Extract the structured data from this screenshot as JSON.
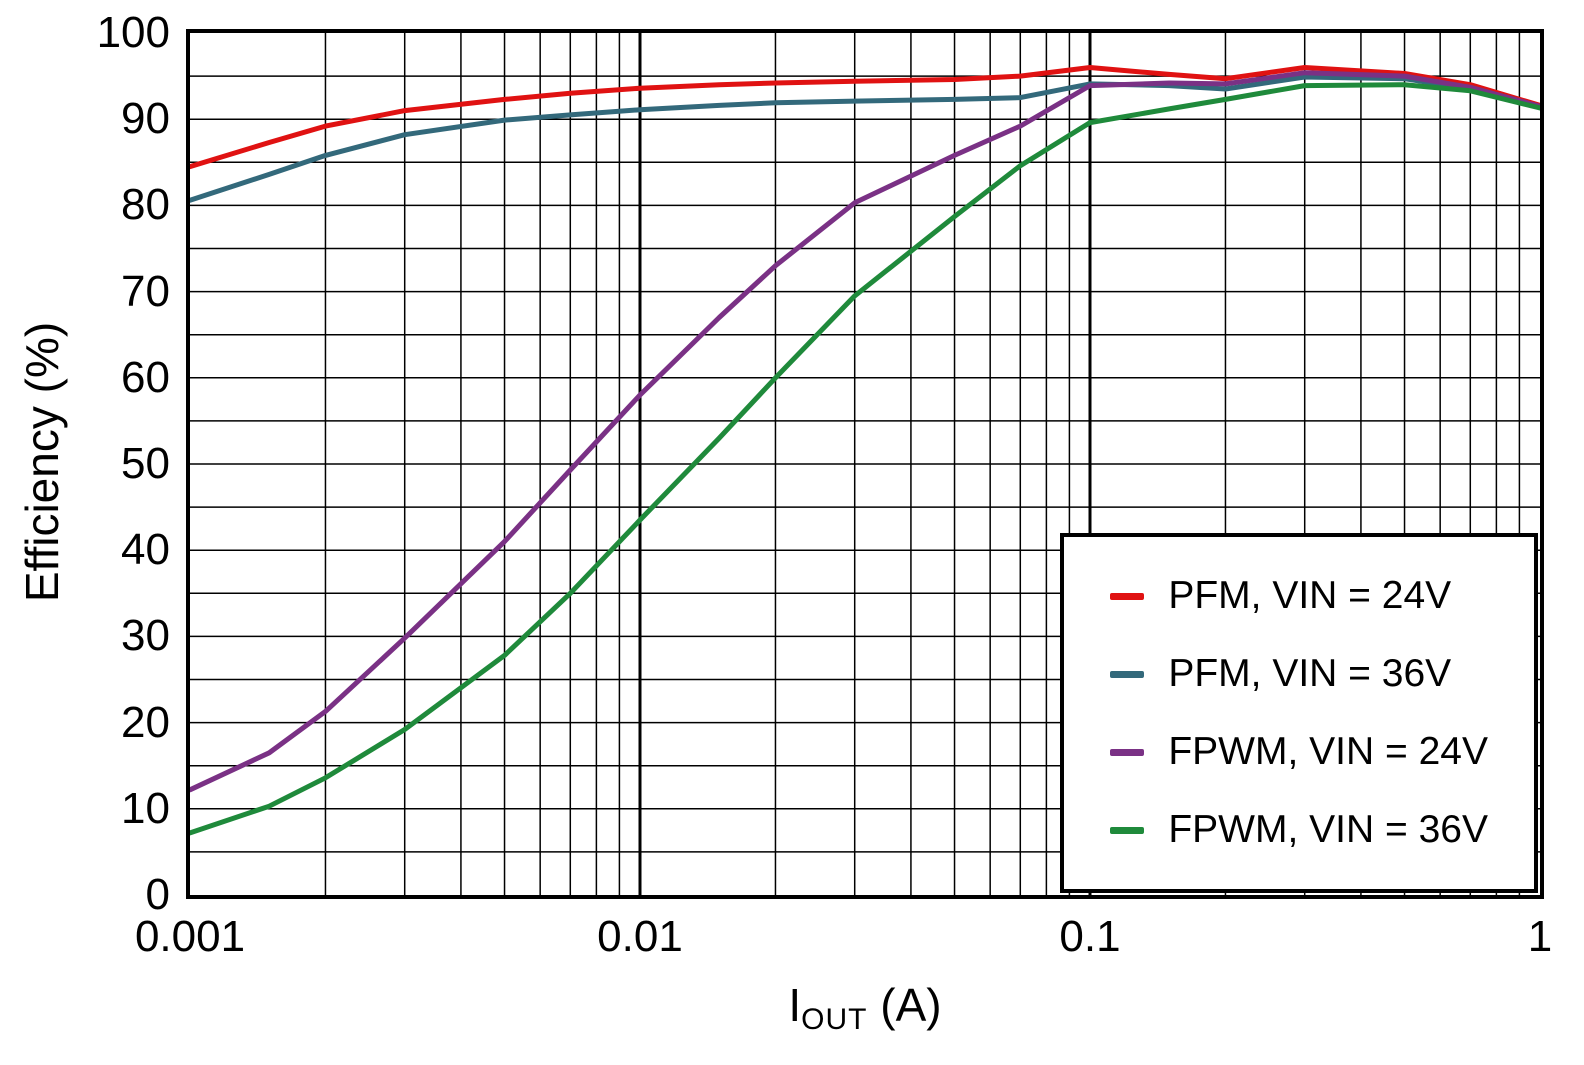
{
  "chart_data": {
    "type": "line",
    "ylabel": "Efficiency (%)",
    "xlabel_parts": {
      "pre": "I",
      "sub": "OUT",
      "post": " (A)"
    },
    "x_scale": "log",
    "xlim": [
      0.001,
      1
    ],
    "ylim": [
      0,
      100
    ],
    "grid": true,
    "y_tick_step": 10,
    "y_grid_step": 5,
    "legend_position": "bottom-right",
    "x_ticks": [
      {
        "value": 0.001,
        "label": "0.001"
      },
      {
        "value": 0.01,
        "label": "0.01"
      },
      {
        "value": 0.1,
        "label": "0.1"
      },
      {
        "value": 1,
        "label": "1"
      }
    ],
    "x": [
      0.001,
      0.0015,
      0.002,
      0.003,
      0.005,
      0.007,
      0.01,
      0.015,
      0.02,
      0.03,
      0.05,
      0.07,
      0.1,
      0.15,
      0.2,
      0.3,
      0.5,
      0.7,
      1
    ],
    "series": [
      {
        "name": "PFM, VIN = 24V",
        "color": "#e01212",
        "values": [
          84.5,
          87.3,
          89.2,
          91.0,
          92.3,
          93.0,
          93.6,
          94.0,
          94.2,
          94.4,
          94.6,
          95.0,
          96.0,
          95.2,
          94.7,
          96.0,
          95.3,
          94.0,
          91.6
        ]
      },
      {
        "name": "PFM, VIN = 36V",
        "color": "#33697b",
        "values": [
          80.6,
          83.6,
          85.8,
          88.2,
          89.9,
          90.5,
          91.1,
          91.6,
          91.9,
          92.1,
          92.3,
          92.5,
          94.1,
          93.9,
          93.5,
          94.9,
          94.7,
          93.5,
          91.4
        ]
      },
      {
        "name": "FPWM, VIN = 24V",
        "color": "#7a3185",
        "values": [
          12.2,
          16.5,
          21.3,
          29.8,
          41.0,
          49.3,
          58.0,
          67.0,
          73.0,
          80.3,
          85.8,
          89.2,
          93.9,
          94.2,
          94.1,
          95.4,
          95.0,
          93.7,
          91.5
        ]
      },
      {
        "name": "FPWM, VIN = 36V",
        "color": "#1f8a3b",
        "values": [
          7.2,
          10.3,
          13.6,
          19.2,
          27.8,
          35.0,
          43.5,
          53.0,
          60.0,
          69.5,
          78.7,
          84.6,
          89.6,
          91.2,
          92.3,
          93.9,
          94.0,
          93.3,
          91.3
        ]
      }
    ]
  }
}
